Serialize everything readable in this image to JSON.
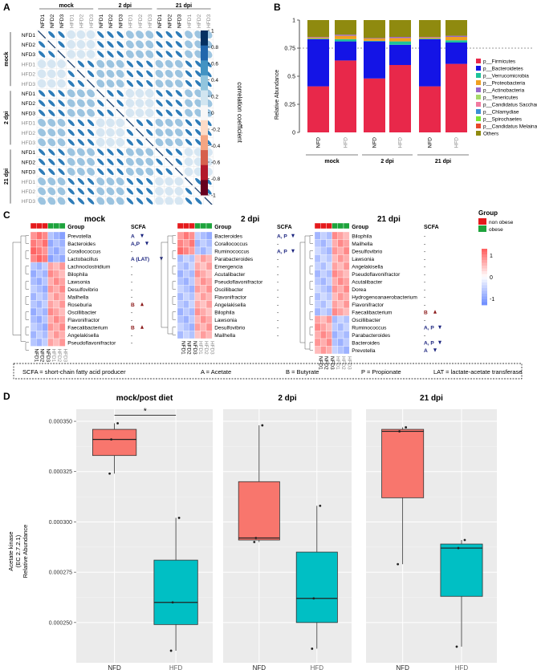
{
  "panels": {
    "A": {
      "letter": "A",
      "groups": [
        "mock",
        "2 dpi",
        "21 dpi"
      ],
      "labels": [
        "NFD1",
        "NFD2",
        "NFD3",
        "HFD1",
        "HFD2",
        "HFD3",
        "NFD1",
        "NFD2",
        "NFD3",
        "HFD1",
        "HFD2",
        "HFD3",
        "NFD1",
        "NFD2",
        "NFD3",
        "HFD1",
        "HFD2",
        "HFD3"
      ],
      "colorbar_title": "correlation coefficient",
      "colorbar_ticks": [
        "1",
        "0.8",
        "0.6",
        "0.4",
        "0.2",
        "0",
        "-0.2",
        "-0.4",
        "-0.6",
        "-0.8",
        "-1"
      ],
      "colors": {
        "neg": "#b2182b",
        "mid": "#f7f7f7",
        "pos": "#2166ac"
      }
    },
    "B": {
      "letter": "B",
      "ylabel": "Relative Abundance",
      "yticks": [
        "1",
        "0.75",
        "0.5",
        "0.25",
        "0"
      ],
      "bars": [
        "NFD",
        "HFD",
        "NFD",
        "HFD",
        "NFD",
        "HFD"
      ],
      "groups": [
        "mock",
        "2 dpi",
        "21 dpi"
      ],
      "legend": [
        {
          "label": "p__Firmicutes",
          "color": "#e8284a"
        },
        {
          "label": "p__Bacteroidetes",
          "color": "#1414e6"
        },
        {
          "label": "p__Verrucomicrobia",
          "color": "#1dc39a"
        },
        {
          "label": "p__Proteobacteria",
          "color": "#f0a020"
        },
        {
          "label": "p__Actinobacteria",
          "color": "#9966cc"
        },
        {
          "label": "p__Tenericutes",
          "color": "#a6d96a"
        },
        {
          "label": "p__Candidatus Saccharibacteria",
          "color": "#f27aa0"
        },
        {
          "label": "p__Chlamydiae",
          "color": "#3a8fd6"
        },
        {
          "label": "p__Spirochaetes",
          "color": "#78e632"
        },
        {
          "label": "p__Candidatus Melainabacteria",
          "color": "#e8482a"
        },
        {
          "label": "Others",
          "color": "#8f8a0f"
        }
      ]
    },
    "C": {
      "letter": "C",
      "titles": [
        "mock",
        "2 dpi",
        "21 dpi"
      ],
      "group_label": "Group",
      "scfa_label": "SCFA",
      "legend_title": "Group",
      "legend_items": [
        {
          "label": "non obese",
          "color": "#e41a1c"
        },
        {
          "label": "obese",
          "color": "#1ea33c"
        }
      ],
      "scale_ticks": [
        "1",
        "0",
        "-1"
      ],
      "mock": {
        "taxa": [
          "Prevotella",
          "Bacteroides",
          "Corallococcus",
          "Lactobacillus",
          "Lachnoclostridium",
          "Bilophila",
          "Lawsonia",
          "Desulfovibrio",
          "Mailhella",
          "Roseburia",
          "Oscillibacter",
          "Flavonifractor",
          "Faecalibacterium",
          "Angelakisella",
          "Pseudoflavonifractor"
        ],
        "scfa": [
          "A",
          "A,P",
          "-",
          "A (LAT)",
          "-",
          "-",
          "-",
          "-",
          "-",
          "B",
          "-",
          "-",
          "B",
          "-",
          "-"
        ],
        "arrows": [
          "down",
          "down",
          "",
          "down",
          "",
          "",
          "",
          "",
          "",
          "up",
          "",
          "",
          "up",
          "",
          ""
        ]
      },
      "dpi2": {
        "taxa": [
          "Bacteroides",
          "Corallococcus",
          "Ruminococcus",
          "Parabacteroides",
          "Emergencia",
          "Acutalibacter",
          "Pseudoflavonifractor",
          "Oscillibacter",
          "Flavonifractor",
          "Angelakisella",
          "Bilophila",
          "Lawsonia",
          "Desulfovibrio",
          "Mailhella"
        ],
        "scfa": [
          "A, P",
          "-",
          "A, P",
          "-",
          "-",
          "-",
          "-",
          "-",
          "-",
          "-",
          "-",
          "-",
          "-",
          "-"
        ],
        "arrows": [
          "down",
          "",
          "down",
          "",
          "",
          "",
          "",
          "",
          "",
          "",
          "",
          "",
          "",
          ""
        ]
      },
      "dpi21": {
        "taxa": [
          "Bilophila",
          "Mailhella",
          "Desulfovibrio",
          "Lawsonia",
          "Angelakisella",
          "Pseudoflavonifractor",
          "Acutalibacter",
          "Dorea",
          "Hydrogenoanaerobacterium",
          "Flavonifractor",
          "Faecalibacterium",
          "Oscillibacter",
          "Ruminococcus",
          "Parabacteroides",
          "Bacteroides",
          "Prevotella"
        ],
        "scfa": [
          "-",
          "-",
          "-",
          "-",
          "-",
          "-",
          "-",
          "-",
          "-",
          "-",
          "B",
          "-",
          "A, P",
          "-",
          "A, P",
          "A"
        ],
        "arrows": [
          "",
          "",
          "",
          "",
          "",
          "",
          "",
          "",
          "",
          "",
          "up",
          "",
          "down",
          "",
          "down",
          "down"
        ]
      },
      "samples": [
        "NFD1",
        "NFD2",
        "NFD3",
        "HFD1",
        "HFD2",
        "HFD3"
      ],
      "footnote": {
        "scfa": "SCFA = short-chain fatty acid producer",
        "a": "A = Acetate",
        "b": "B = Butyrate",
        "p": "P = Propionate",
        "lat": "LAT = lactate-acetate transferase"
      }
    },
    "D": {
      "letter": "D",
      "titles": [
        "mock/post diet",
        "2 dpi",
        "21 dpi"
      ],
      "ylabel_line1": "Acetate kinase",
      "ylabel_line2": "(EC 2.7.2.1)",
      "ylabel_line3": "Relative Abundance",
      "yticks": [
        "0.000350",
        "0.000325",
        "0.000300",
        "0.000275",
        "0.000250"
      ],
      "xlabels": [
        "NFD",
        "HFD"
      ],
      "significance": "*",
      "colors": {
        "nfd": "#f8766d",
        "hfd": "#00bfc4",
        "bg": "#ebebeb"
      }
    }
  },
  "chart_data": [
    {
      "type": "bar",
      "title": "",
      "ylabel": "Relative Abundance",
      "ylim": [
        0,
        1
      ],
      "categories": [
        "mock NFD",
        "mock HFD",
        "2 dpi NFD",
        "2 dpi HFD",
        "21 dpi NFD",
        "21 dpi HFD"
      ],
      "series": [
        {
          "name": "p__Firmicutes",
          "values": [
            0.41,
            0.64,
            0.48,
            0.6,
            0.41,
            0.61
          ]
        },
        {
          "name": "p__Bacteroidetes",
          "values": [
            0.42,
            0.17,
            0.33,
            0.18,
            0.42,
            0.19
          ]
        },
        {
          "name": "p__Verrucomicrobia",
          "values": [
            0.005,
            0.02,
            0.005,
            0.03,
            0.005,
            0.02
          ]
        },
        {
          "name": "p__Proteobacteria",
          "values": [
            0.01,
            0.03,
            0.02,
            0.03,
            0.01,
            0.03
          ]
        },
        {
          "name": "p__Actinobacteria",
          "values": [
            0.005,
            0.01,
            0.005,
            0.01,
            0.005,
            0.01
          ]
        },
        {
          "name": "Others",
          "values": [
            0.15,
            0.13,
            0.16,
            0.15,
            0.15,
            0.14
          ]
        }
      ]
    },
    {
      "type": "box",
      "title": "mock/post diet",
      "ylabel": "Acetate kinase (EC 2.7.2.1) Relative Abundance",
      "categories": [
        "NFD",
        "HFD"
      ],
      "boxes": [
        {
          "name": "NFD",
          "min": 0.000324,
          "q1": 0.000333,
          "median": 0.000341,
          "q3": 0.000346,
          "max": 0.000349,
          "points": [
            0.000324,
            0.000341,
            0.000349
          ]
        },
        {
          "name": "HFD",
          "min": 0.000236,
          "q1": 0.000249,
          "median": 0.00026,
          "q3": 0.000281,
          "max": 0.000302,
          "points": [
            0.000236,
            0.00026,
            0.000302
          ]
        }
      ]
    },
    {
      "type": "box",
      "title": "2 dpi",
      "categories": [
        "NFD",
        "HFD"
      ],
      "boxes": [
        {
          "name": "NFD",
          "min": 0.00029,
          "q1": 0.000291,
          "median": 0.000292,
          "q3": 0.00032,
          "max": 0.000348,
          "points": [
            0.00029,
            0.000292,
            0.000348
          ]
        },
        {
          "name": "HFD",
          "min": 0.000237,
          "q1": 0.00025,
          "median": 0.000262,
          "q3": 0.000285,
          "max": 0.000308,
          "points": [
            0.000237,
            0.000262,
            0.000308
          ]
        }
      ]
    },
    {
      "type": "box",
      "title": "21 dpi",
      "categories": [
        "NFD",
        "HFD"
      ],
      "boxes": [
        {
          "name": "NFD",
          "min": 0.000279,
          "q1": 0.000312,
          "median": 0.000345,
          "q3": 0.000346,
          "max": 0.000347,
          "points": [
            0.000279,
            0.000345,
            0.000347
          ]
        },
        {
          "name": "HFD",
          "min": 0.000238,
          "q1": 0.000263,
          "median": 0.000287,
          "q3": 0.000289,
          "max": 0.000291,
          "points": [
            0.000238,
            0.000287,
            0.000291
          ]
        }
      ]
    }
  ]
}
